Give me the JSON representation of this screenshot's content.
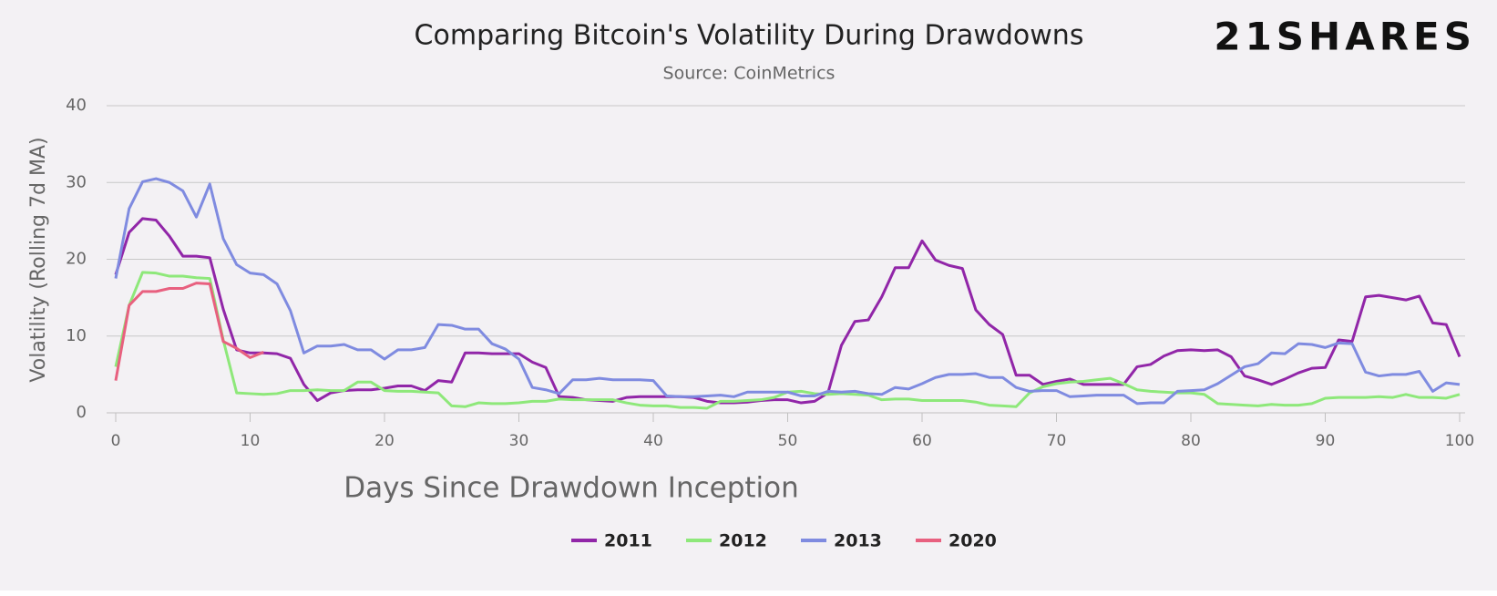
{
  "logo": "21SHARES",
  "chart_data": {
    "type": "line",
    "title": "Comparing Bitcoin's Volatility During Drawdowns",
    "subtitle": "Source: CoinMetrics",
    "x_label": "Days Since Drawdown Inception",
    "y_label": "Volatility (Rolling 7d MA)",
    "x": [
      0,
      1,
      2,
      3,
      4,
      5,
      6,
      7,
      8,
      9,
      10,
      11,
      12,
      13,
      14,
      15,
      16,
      17,
      18,
      19,
      20,
      21,
      22,
      23,
      24,
      25,
      26,
      27,
      28,
      29,
      30,
      31,
      32,
      33,
      34,
      35,
      36,
      37,
      38,
      39,
      40,
      41,
      42,
      43,
      44,
      45,
      46,
      47,
      48,
      49,
      50,
      51,
      52,
      53,
      54,
      55,
      56,
      57,
      58,
      59,
      60,
      61,
      62,
      63,
      64,
      65,
      66,
      67,
      68,
      69,
      70,
      71,
      72,
      73,
      74,
      75,
      76,
      77,
      78,
      79,
      80,
      81,
      82,
      83,
      84,
      85,
      86,
      87,
      88,
      89,
      90,
      91,
      92,
      93,
      94,
      95,
      96,
      97,
      98,
      99,
      100
    ],
    "xlim": [
      0,
      100
    ],
    "xticks": [
      0,
      10,
      20,
      30,
      40,
      50,
      60,
      70,
      80,
      90,
      100
    ],
    "ylim": [
      0,
      40
    ],
    "yticks": [
      0,
      10,
      20,
      30,
      40
    ],
    "grid": true,
    "legend": "bottom",
    "series": [
      {
        "name": "2011",
        "color": "#9126a8",
        "values": [
          18,
          23.5,
          25.3,
          25.1,
          23,
          20.4,
          20.4,
          20.2,
          13.5,
          8.2,
          7.8,
          7.8,
          7.7,
          7.1,
          3.7,
          1.6,
          2.6,
          2.9,
          3.0,
          3.0,
          3.2,
          3.5,
          3.5,
          2.9,
          4.2,
          4.0,
          7.8,
          7.8,
          7.7,
          7.7,
          7.7,
          6.6,
          5.9,
          2.1,
          2.0,
          1.7,
          1.6,
          1.5,
          2.0,
          2.1,
          2.1,
          2.1,
          2.1,
          2.0,
          1.5,
          1.3,
          1.3,
          1.4,
          1.6,
          1.7,
          1.7,
          1.3,
          1.5,
          2.6,
          8.8,
          11.9,
          12.1,
          15.1,
          18.9,
          18.9,
          22.4,
          19.9,
          19.2,
          18.8,
          13.4,
          11.5,
          10.2,
          4.9,
          4.9,
          3.7,
          4.1,
          4.4,
          3.7,
          3.7,
          3.7,
          3.7,
          6.0,
          6.3,
          7.4,
          8.1,
          8.2,
          8.1,
          8.2,
          7.3,
          4.8,
          4.3,
          3.7,
          4.4,
          5.2,
          5.8,
          5.9,
          9.5,
          9.3,
          15.1,
          15.3,
          15.0,
          14.7,
          15.2,
          11.7,
          11.5,
          7.3
        ]
      },
      {
        "name": "2012",
        "color": "#8ee87a",
        "values": [
          6,
          14,
          18.3,
          18.2,
          17.8,
          17.8,
          17.6,
          17.5,
          9.5,
          2.6,
          2.5,
          2.4,
          2.5,
          2.9,
          2.9,
          3.0,
          2.9,
          2.9,
          4.0,
          4.0,
          2.9,
          2.8,
          2.8,
          2.7,
          2.6,
          0.9,
          0.8,
          1.3,
          1.2,
          1.2,
          1.3,
          1.5,
          1.5,
          1.8,
          1.7,
          1.7,
          1.7,
          1.7,
          1.3,
          1.0,
          0.9,
          0.9,
          0.7,
          0.7,
          0.6,
          1.5,
          1.5,
          1.6,
          1.7,
          2.0,
          2.7,
          2.8,
          2.5,
          2.4,
          2.5,
          2.4,
          2.3,
          1.7,
          1.8,
          1.8,
          1.6,
          1.6,
          1.6,
          1.6,
          1.4,
          1.0,
          0.9,
          0.8,
          2.6,
          3.4,
          3.8,
          4.0,
          4.1,
          4.3,
          4.5,
          3.8,
          3.0,
          2.8,
          2.7,
          2.6,
          2.6,
          2.4,
          1.2,
          1.1,
          1.0,
          0.9,
          1.1,
          1.0,
          1.0,
          1.2,
          1.9,
          2.0,
          2.0,
          2.0,
          2.1,
          2.0,
          2.4,
          2.0,
          2.0,
          1.9,
          2.4
        ]
      },
      {
        "name": "2013",
        "color": "#7f8be0",
        "values": [
          17.5,
          26.6,
          30.1,
          30.5,
          30,
          28.9,
          25.5,
          29.8,
          22.7,
          19.3,
          18.2,
          18.0,
          16.8,
          13.3,
          7.8,
          8.7,
          8.7,
          8.9,
          8.2,
          8.2,
          7.0,
          8.2,
          8.2,
          8.5,
          11.5,
          11.4,
          10.9,
          10.9,
          9.0,
          8.3,
          7.0,
          3.3,
          3.0,
          2.5,
          4.3,
          4.3,
          4.5,
          4.3,
          4.3,
          4.3,
          4.2,
          2.2,
          2.1,
          2.1,
          2.2,
          2.3,
          2.1,
          2.7,
          2.7,
          2.7,
          2.7,
          2.2,
          2.2,
          2.8,
          2.7,
          2.8,
          2.5,
          2.4,
          3.3,
          3.1,
          3.8,
          4.6,
          5.0,
          5.0,
          5.1,
          4.6,
          4.6,
          3.3,
          2.8,
          2.9,
          2.9,
          2.1,
          2.2,
          2.3,
          2.3,
          2.3,
          1.2,
          1.3,
          1.3,
          2.8,
          2.9,
          3.0,
          3.8,
          4.9,
          6.0,
          6.4,
          7.8,
          7.7,
          9.0,
          8.9,
          8.5,
          9.1,
          9.0,
          5.3,
          4.8,
          5.0,
          5.0,
          5.4,
          2.8,
          3.9,
          3.7
        ]
      },
      {
        "name": "2020",
        "color": "#e8607f",
        "values": [
          4.2,
          14,
          15.8,
          15.8,
          16.2,
          16.2,
          16.9,
          16.8,
          9.3,
          8.4,
          7.2,
          7.9,
          null,
          null,
          null,
          null,
          null,
          null,
          null,
          null,
          null,
          null,
          null,
          null,
          null,
          null,
          null,
          null,
          null,
          null,
          null,
          null,
          null,
          null,
          null,
          null,
          null,
          null,
          null,
          null,
          null,
          null,
          null,
          null,
          null,
          null,
          null,
          null,
          null,
          null,
          null,
          null,
          null,
          null,
          null,
          null,
          null,
          null,
          null,
          null,
          null,
          null,
          null,
          null,
          null,
          null,
          null,
          null,
          null,
          null,
          null,
          null,
          null,
          null,
          null,
          null,
          null,
          null,
          null,
          null,
          null,
          null,
          null,
          null,
          null,
          null,
          null,
          null,
          null,
          null,
          null,
          null,
          null,
          null,
          null,
          null,
          null,
          null,
          null,
          null,
          null
        ]
      }
    ]
  }
}
